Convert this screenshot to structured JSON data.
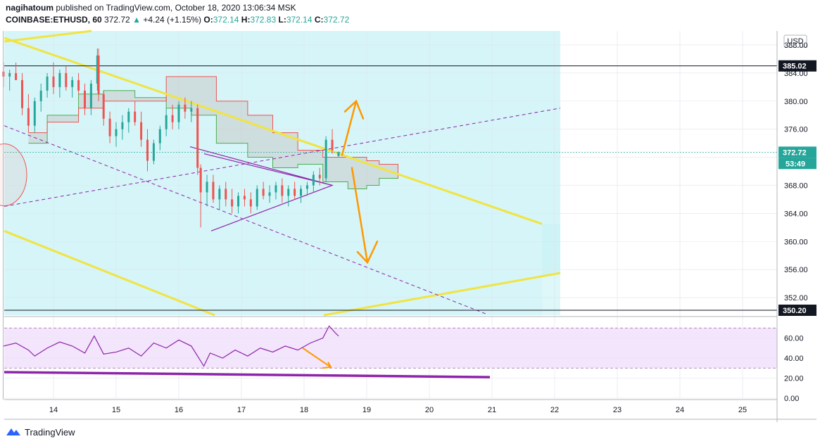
{
  "header": {
    "author": "nagihatoum",
    "published_text": "published on TradingView.com, October 18, 2020 13:06:34 MSK",
    "symbol": "COINBASE:ETHUSD, 60",
    "last": "372.72",
    "change_arrow": "▲",
    "change": "+4.24 (+1.15%)",
    "o_label": "O:",
    "o": "372.14",
    "h_label": "H:",
    "h": "372.83",
    "l_label": "L:",
    "l": "372.14",
    "c_label": "C:",
    "c": "372.72"
  },
  "footer": {
    "brand": "TradingView",
    "logo_icon": "tradingview-logo-icon"
  },
  "colors": {
    "candle_up": "#26a69a",
    "candle_down": "#ef5350",
    "channel": "#f0e442",
    "triangle": "#8e24aa",
    "arrow": "#ff9800",
    "cloud_fill": "#c8c8c8",
    "kumo_green": "#4caf50",
    "kumo_red": "#ef5350",
    "rsi_line": "#8e24aa",
    "rsi_band": "#f3e5fc",
    "channel_bg": "#c8f2f5"
  },
  "chart_data": [
    {
      "type": "candlestick",
      "currency_label": "USD",
      "ylim": [
        349.5,
        390
      ],
      "y_ticks": [
        "388.00",
        "384.00",
        "380.00",
        "376.00",
        "372.00",
        "368.00",
        "364.00",
        "360.00",
        "356.00",
        "352.00"
      ],
      "x_ticks": [
        "14",
        "15",
        "16",
        "17",
        "18",
        "19",
        "20",
        "21",
        "22",
        "23",
        "24",
        "25"
      ],
      "price_labels": [
        {
          "value": 385.02,
          "text": "385.02"
        },
        {
          "value": 372.72,
          "text": "372.72"
        },
        {
          "value": 350.2,
          "text": "350.20"
        }
      ],
      "countdown": "53:49",
      "horizontal_lines": [
        385.02,
        350.2
      ],
      "current_price": 372.72,
      "candles": [
        {
          "d": 13.2,
          "o": 384.2,
          "h": 385.5,
          "l": 382.0,
          "c": 383.5
        },
        {
          "d": 13.3,
          "o": 383.5,
          "h": 384.5,
          "l": 381.5,
          "c": 384.0
        },
        {
          "d": 13.4,
          "o": 384.0,
          "h": 385.5,
          "l": 383.0,
          "c": 383.0
        },
        {
          "d": 13.5,
          "o": 383.0,
          "h": 384.0,
          "l": 378.0,
          "c": 379.0
        },
        {
          "d": 13.6,
          "o": 379.0,
          "h": 381.0,
          "l": 375.5,
          "c": 376.5
        },
        {
          "d": 13.7,
          "o": 376.5,
          "h": 380.5,
          "l": 375.5,
          "c": 380.0
        },
        {
          "d": 13.8,
          "o": 380.0,
          "h": 382.5,
          "l": 378.5,
          "c": 381.5
        },
        {
          "d": 13.9,
          "o": 381.5,
          "h": 384.0,
          "l": 380.5,
          "c": 383.5
        },
        {
          "d": 14.0,
          "o": 383.5,
          "h": 385.5,
          "l": 381.0,
          "c": 382.0
        },
        {
          "d": 14.1,
          "o": 382.0,
          "h": 384.5,
          "l": 380.5,
          "c": 384.0
        },
        {
          "d": 14.2,
          "o": 384.0,
          "h": 385.0,
          "l": 381.5,
          "c": 382.0
        },
        {
          "d": 14.3,
          "o": 382.0,
          "h": 383.5,
          "l": 380.5,
          "c": 383.0
        },
        {
          "d": 14.4,
          "o": 383.0,
          "h": 384.0,
          "l": 381.0,
          "c": 381.5
        },
        {
          "d": 14.5,
          "o": 381.5,
          "h": 382.5,
          "l": 378.0,
          "c": 379.0
        },
        {
          "d": 14.6,
          "o": 379.0,
          "h": 383.0,
          "l": 378.0,
          "c": 382.5
        },
        {
          "d": 14.7,
          "o": 382.5,
          "h": 387.5,
          "l": 381.5,
          "c": 386.5
        },
        {
          "d": 14.72,
          "o": 386.5,
          "h": 387.5,
          "l": 380.0,
          "c": 381.0
        },
        {
          "d": 14.8,
          "o": 381.0,
          "h": 381.5,
          "l": 376.5,
          "c": 377.5
        },
        {
          "d": 14.9,
          "o": 377.5,
          "h": 378.5,
          "l": 374.0,
          "c": 375.0
        },
        {
          "d": 15.0,
          "o": 375.0,
          "h": 377.0,
          "l": 373.5,
          "c": 376.0
        },
        {
          "d": 15.1,
          "o": 376.0,
          "h": 378.0,
          "l": 374.5,
          "c": 377.0
        },
        {
          "d": 15.2,
          "o": 377.0,
          "h": 379.0,
          "l": 375.5,
          "c": 378.5
        },
        {
          "d": 15.3,
          "o": 378.5,
          "h": 380.0,
          "l": 376.5,
          "c": 377.0
        },
        {
          "d": 15.4,
          "o": 377.0,
          "h": 378.5,
          "l": 373.5,
          "c": 374.5
        },
        {
          "d": 15.5,
          "o": 374.5,
          "h": 376.0,
          "l": 370.0,
          "c": 371.5
        },
        {
          "d": 15.6,
          "o": 371.5,
          "h": 374.5,
          "l": 371.0,
          "c": 374.0
        },
        {
          "d": 15.7,
          "o": 374.0,
          "h": 376.5,
          "l": 373.0,
          "c": 376.0
        },
        {
          "d": 15.8,
          "o": 376.0,
          "h": 379.0,
          "l": 375.0,
          "c": 378.0
        },
        {
          "d": 15.9,
          "o": 378.0,
          "h": 379.5,
          "l": 376.0,
          "c": 377.0
        },
        {
          "d": 16.0,
          "o": 377.0,
          "h": 380.0,
          "l": 376.0,
          "c": 379.5
        },
        {
          "d": 16.1,
          "o": 379.5,
          "h": 380.5,
          "l": 377.5,
          "c": 378.5
        },
        {
          "d": 16.2,
          "o": 378.5,
          "h": 380.0,
          "l": 377.0,
          "c": 379.0
        },
        {
          "d": 16.3,
          "o": 379.0,
          "h": 379.5,
          "l": 369.5,
          "c": 370.5
        },
        {
          "d": 16.35,
          "o": 370.5,
          "h": 371.0,
          "l": 362.0,
          "c": 367.0
        },
        {
          "d": 16.45,
          "o": 367.0,
          "h": 369.5,
          "l": 365.0,
          "c": 368.5
        },
        {
          "d": 16.55,
          "o": 368.5,
          "h": 369.5,
          "l": 365.5,
          "c": 366.0
        },
        {
          "d": 16.65,
          "o": 366.0,
          "h": 368.0,
          "l": 364.5,
          "c": 367.5
        },
        {
          "d": 16.75,
          "o": 367.5,
          "h": 368.5,
          "l": 365.0,
          "c": 366.0
        },
        {
          "d": 16.85,
          "o": 366.0,
          "h": 367.5,
          "l": 364.0,
          "c": 365.0
        },
        {
          "d": 16.95,
          "o": 365.0,
          "h": 367.0,
          "l": 364.0,
          "c": 366.5
        },
        {
          "d": 17.05,
          "o": 366.5,
          "h": 367.5,
          "l": 365.0,
          "c": 366.0
        },
        {
          "d": 17.15,
          "o": 366.0,
          "h": 367.0,
          "l": 364.0,
          "c": 365.0
        },
        {
          "d": 17.25,
          "o": 365.0,
          "h": 368.0,
          "l": 364.5,
          "c": 367.5
        },
        {
          "d": 17.35,
          "o": 367.5,
          "h": 368.5,
          "l": 366.0,
          "c": 366.5
        },
        {
          "d": 17.45,
          "o": 366.5,
          "h": 368.0,
          "l": 365.5,
          "c": 367.0
        },
        {
          "d": 17.55,
          "o": 367.0,
          "h": 368.5,
          "l": 366.0,
          "c": 368.0
        },
        {
          "d": 17.65,
          "o": 368.0,
          "h": 369.0,
          "l": 365.5,
          "c": 366.5
        },
        {
          "d": 17.75,
          "o": 366.5,
          "h": 368.0,
          "l": 365.0,
          "c": 367.5
        },
        {
          "d": 17.85,
          "o": 367.5,
          "h": 368.5,
          "l": 366.0,
          "c": 366.5
        },
        {
          "d": 17.95,
          "o": 366.5,
          "h": 368.0,
          "l": 365.5,
          "c": 367.5
        },
        {
          "d": 18.05,
          "o": 367.5,
          "h": 368.5,
          "l": 366.5,
          "c": 368.0
        },
        {
          "d": 18.15,
          "o": 368.0,
          "h": 370.0,
          "l": 367.0,
          "c": 369.5
        },
        {
          "d": 18.25,
          "o": 369.5,
          "h": 370.5,
          "l": 368.0,
          "c": 369.0
        },
        {
          "d": 18.35,
          "o": 369.0,
          "h": 375.0,
          "l": 368.5,
          "c": 374.5
        },
        {
          "d": 18.45,
          "o": 374.5,
          "h": 376.0,
          "l": 372.5,
          "c": 373.0
        },
        {
          "d": 18.55,
          "o": 372.14,
          "h": 372.83,
          "l": 372.14,
          "c": 372.72
        }
      ],
      "kumo_span_a": [
        {
          "d": 13.6,
          "v": 374.0
        },
        {
          "d": 13.9,
          "v": 378.0
        },
        {
          "d": 14.4,
          "v": 381.0
        },
        {
          "d": 14.8,
          "v": 381.5
        },
        {
          "d": 15.3,
          "v": 380.5
        },
        {
          "d": 15.8,
          "v": 379.0
        },
        {
          "d": 16.2,
          "v": 378.0
        },
        {
          "d": 16.6,
          "v": 374.0
        },
        {
          "d": 17.1,
          "v": 372.0
        },
        {
          "d": 17.5,
          "v": 370.5
        },
        {
          "d": 17.9,
          "v": 371.0
        },
        {
          "d": 18.3,
          "v": 368.5
        },
        {
          "d": 18.7,
          "v": 367.5
        },
        {
          "d": 19.0,
          "v": 368.0
        },
        {
          "d": 19.2,
          "v": 369.0
        },
        {
          "d": 19.5,
          "v": 371.0
        }
      ],
      "kumo_span_b": [
        {
          "d": 13.6,
          "v": 375.5
        },
        {
          "d": 13.9,
          "v": 377.0
        },
        {
          "d": 14.4,
          "v": 379.0
        },
        {
          "d": 14.8,
          "v": 380.0
        },
        {
          "d": 15.3,
          "v": 380.0
        },
        {
          "d": 15.8,
          "v": 383.5
        },
        {
          "d": 16.2,
          "v": 383.5
        },
        {
          "d": 16.6,
          "v": 380.0
        },
        {
          "d": 17.1,
          "v": 378.0
        },
        {
          "d": 17.5,
          "v": 375.5
        },
        {
          "d": 17.9,
          "v": 373.0
        },
        {
          "d": 18.3,
          "v": 372.0
        },
        {
          "d": 18.7,
          "v": 372.0
        },
        {
          "d": 19.0,
          "v": 371.5
        },
        {
          "d": 19.2,
          "v": 371.0
        },
        {
          "d": 19.5,
          "v": 369.0
        }
      ],
      "rsi": {
        "ticks": [
          "60.00",
          "40.00",
          "20.00",
          "0.00"
        ],
        "ylim": [
          0,
          80
        ],
        "upper_band": 70,
        "lower_band": 30,
        "values": [
          {
            "d": 13.2,
            "v": 52
          },
          {
            "d": 13.4,
            "v": 55
          },
          {
            "d": 13.6,
            "v": 48
          },
          {
            "d": 13.7,
            "v": 42
          },
          {
            "d": 13.9,
            "v": 50
          },
          {
            "d": 14.1,
            "v": 56
          },
          {
            "d": 14.3,
            "v": 52
          },
          {
            "d": 14.5,
            "v": 45
          },
          {
            "d": 14.65,
            "v": 62
          },
          {
            "d": 14.8,
            "v": 44
          },
          {
            "d": 15.0,
            "v": 46
          },
          {
            "d": 15.2,
            "v": 50
          },
          {
            "d": 15.4,
            "v": 42
          },
          {
            "d": 15.6,
            "v": 55
          },
          {
            "d": 15.8,
            "v": 50
          },
          {
            "d": 16.0,
            "v": 58
          },
          {
            "d": 16.2,
            "v": 52
          },
          {
            "d": 16.4,
            "v": 32
          },
          {
            "d": 16.5,
            "v": 45
          },
          {
            "d": 16.7,
            "v": 40
          },
          {
            "d": 16.9,
            "v": 48
          },
          {
            "d": 17.1,
            "v": 42
          },
          {
            "d": 17.3,
            "v": 50
          },
          {
            "d": 17.5,
            "v": 46
          },
          {
            "d": 17.7,
            "v": 52
          },
          {
            "d": 17.9,
            "v": 48
          },
          {
            "d": 18.1,
            "v": 55
          },
          {
            "d": 18.3,
            "v": 60
          },
          {
            "d": 18.4,
            "v": 72
          },
          {
            "d": 18.5,
            "v": 65
          },
          {
            "d": 18.55,
            "v": 62
          }
        ]
      }
    }
  ]
}
